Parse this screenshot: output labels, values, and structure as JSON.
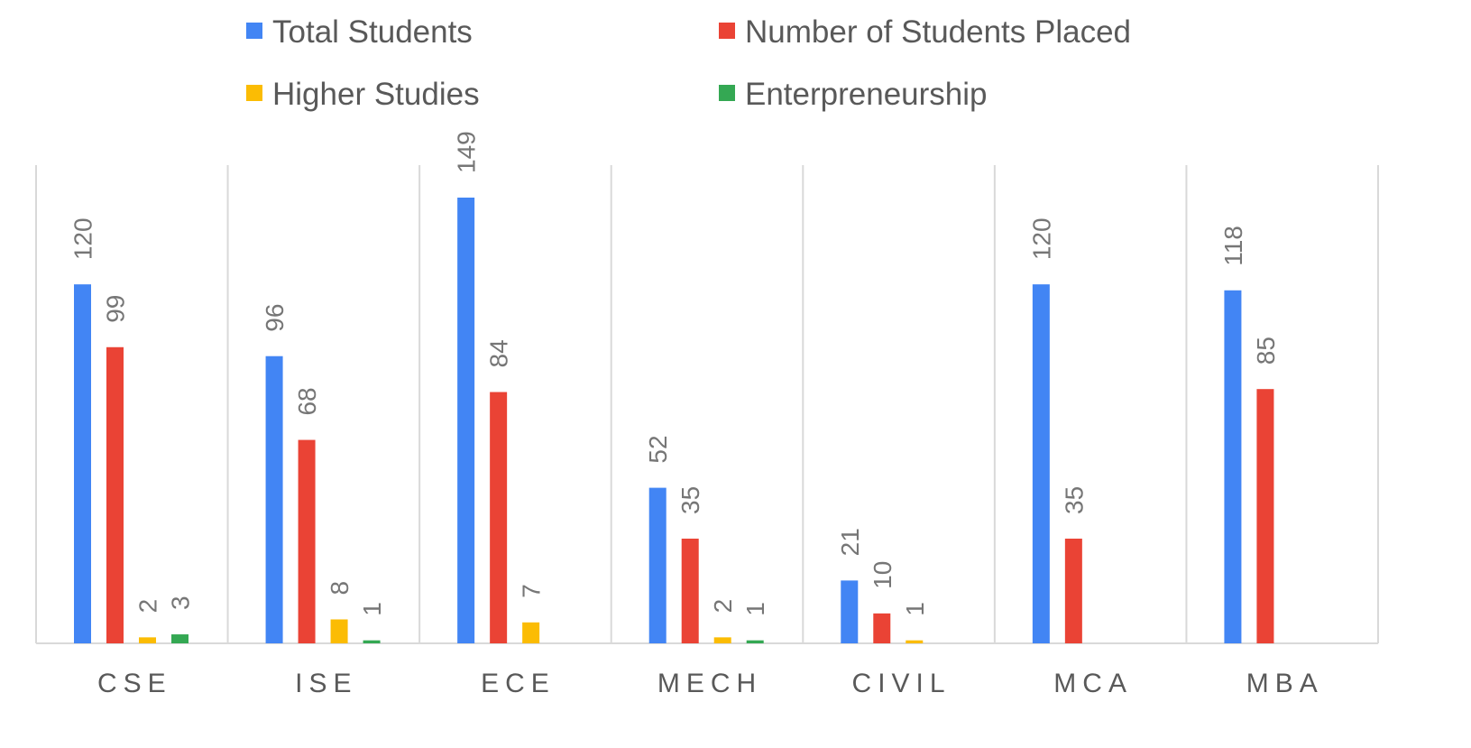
{
  "chart_data": {
    "type": "bar",
    "title": "",
    "xlabel": "",
    "ylabel": "",
    "ylim": [
      0,
      160
    ],
    "grid": "vertical category separators",
    "legend_position": "top",
    "categories": [
      "CSE",
      "ISE",
      "ECE",
      "MECH",
      "CIVIL",
      "MCA",
      "MBA"
    ],
    "series": [
      {
        "name": "Total Students",
        "color": "#4285F4",
        "values": [
          120,
          96,
          149,
          52,
          21,
          120,
          118
        ]
      },
      {
        "name": "Number of Students Placed",
        "color": "#EA4335",
        "values": [
          99,
          68,
          84,
          35,
          10,
          35,
          85
        ]
      },
      {
        "name": "Higher Studies",
        "color": "#FBBC04",
        "values": [
          2,
          8,
          7,
          2,
          1,
          null,
          null
        ]
      },
      {
        "name": "Enterpreneurship",
        "color": "#34A853",
        "values": [
          3,
          1,
          null,
          1,
          null,
          null,
          null
        ]
      }
    ]
  }
}
